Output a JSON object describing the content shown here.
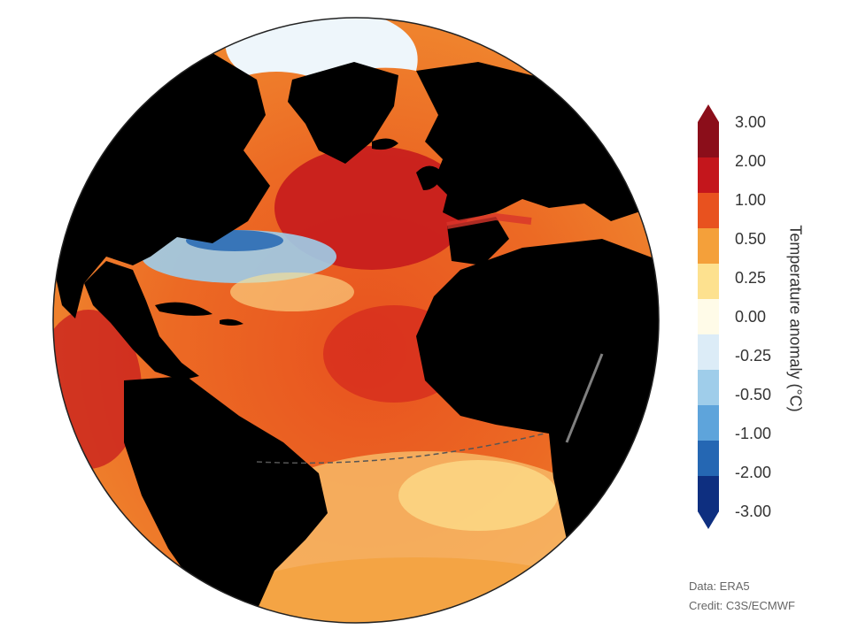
{
  "legend": {
    "title": "Temperature anomaly (°C)",
    "ticks": [
      "3.00",
      "2.00",
      "1.00",
      "0.50",
      "0.25",
      "0.00",
      "-0.25",
      "-0.50",
      "-1.00",
      "-2.00",
      "-3.00"
    ],
    "colors": [
      "#8b0e1a",
      "#c4161c",
      "#e8521f",
      "#f4a03a",
      "#fde18f",
      "#fffbe8",
      "#dcecf7",
      "#9fcdea",
      "#5ea4db",
      "#2567b3",
      "#0e2f80"
    ]
  },
  "credits": {
    "data": "Data: ERA5",
    "credit": "Credit: C3S/ECMWF"
  }
}
